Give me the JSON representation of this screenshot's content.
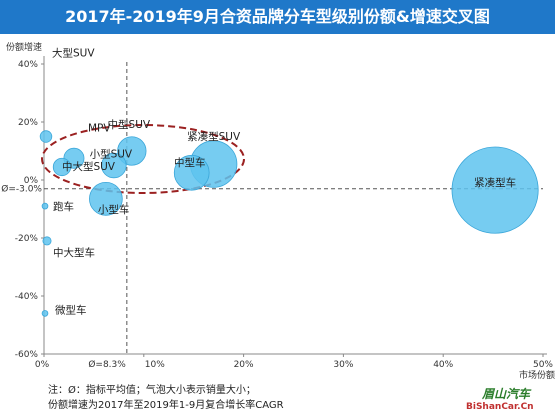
{
  "title": "2017年-2019年9月合资品牌分车型级别份额&增速交叉图",
  "chart_data": {
    "type": "bubble",
    "xlabel": "市场份额",
    "ylabel": "份额增速",
    "xlim": [
      0,
      50
    ],
    "ylim": [
      -60,
      40
    ],
    "x_ticks": [
      {
        "label": "0%",
        "value": 0
      },
      {
        "label": "10%",
        "value": 10
      },
      {
        "label": "20%",
        "value": 20
      },
      {
        "label": "30%",
        "value": 30
      },
      {
        "label": "40%",
        "value": 40
      },
      {
        "label": "50%",
        "value": 50
      }
    ],
    "y_ticks": [
      {
        "label": "40%",
        "value": 40
      },
      {
        "label": "20%",
        "value": 20
      },
      {
        "label": "0%",
        "value": 0
      },
      {
        "label": "-20%",
        "value": -20
      },
      {
        "label": "-40%",
        "value": -40
      },
      {
        "label": "-60%",
        "value": -60
      }
    ],
    "x_avg": 8.3,
    "x_avg_label": "Ø=8.3%",
    "y_avg": -3.0,
    "y_avg_label": "Ø=-3.0%",
    "points": [
      {
        "name": "大型SUV",
        "x": 0.2,
        "y": 15,
        "size": 0.2
      },
      {
        "name": "MPV",
        "x": 3.0,
        "y": 7.5,
        "size": 0.6
      },
      {
        "name": "中型SUV",
        "x": 8.8,
        "y": 10,
        "size": 1.2
      },
      {
        "name": "小型SUV",
        "x": 7.0,
        "y": 5,
        "size": 0.9
      },
      {
        "name": "中大型SUV",
        "x": 1.8,
        "y": 4.5,
        "size": 0.45
      },
      {
        "name": "紧凑型SUV",
        "x": 17.0,
        "y": 5.5,
        "size": 3.2
      },
      {
        "name": "中型车",
        "x": 14.8,
        "y": 2.5,
        "size": 1.8
      },
      {
        "name": "紧凑型车",
        "x": 45.2,
        "y": -3.5,
        "size": 11.0
      },
      {
        "name": "跑车",
        "x": 0.1,
        "y": -9,
        "size": 0.05
      },
      {
        "name": "小型车",
        "x": 6.2,
        "y": -6.5,
        "size": 1.6
      },
      {
        "name": "中大型车",
        "x": 0.3,
        "y": -21,
        "size": 0.1
      },
      {
        "name": "微型车",
        "x": 0.1,
        "y": -46,
        "size": 0.05
      }
    ]
  },
  "footnote": {
    "line1": "注：Ø：指标平均值；气泡大小表示销量大小；",
    "line2": "份额增速为2017年至2019年1-9月复合增长率CAGR"
  },
  "watermark": {
    "line1": "眉山汽车",
    "line2": "BiShanCar.Cn"
  },
  "colors": {
    "title_bar": "#1f78c9",
    "bubble_fill": "#5ec3ef",
    "bubble_stroke": "#3aa6d9",
    "highlight_ellipse": "#9b2121",
    "avg_line": "#555555"
  }
}
